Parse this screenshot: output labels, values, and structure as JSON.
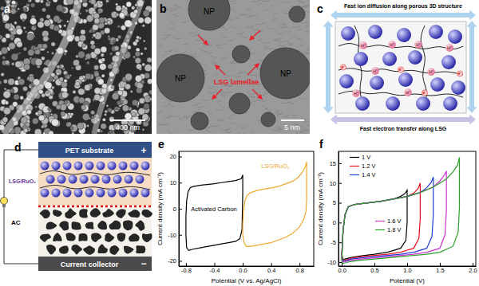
{
  "panels": {
    "a": {
      "label": "a",
      "scale_bar": "400 nm"
    },
    "b": {
      "label": "b",
      "particle_label": "NP",
      "annotation": "LSG lamellae",
      "scale_bar": "5 nm"
    },
    "c": {
      "label": "c",
      "top_text": "Fast ion diffusion along porous 3D structure",
      "bottom_text": "Fast electron transfer along LSG",
      "ion": "H⁺",
      "electron": "e⁻"
    },
    "d": {
      "label": "d",
      "substrate": "PET substrate",
      "positive": "+",
      "electrode_top": "LSG/RuO₂",
      "electrode_bottom": "AC",
      "collector": "Current collector",
      "negative": "−"
    }
  },
  "chart_data": [
    {
      "type": "line",
      "panel_label": "e",
      "xlabel": "Potential (V vs. Ag/AgCl)",
      "ylabel": "Current density (mA cm⁻²)",
      "xlim": [
        -0.9,
        1.0
      ],
      "ylim": [
        -22,
        22
      ],
      "xticks": [
        -0.8,
        -0.4,
        {
          "value": 0,
          "label": "0.0"
        },
        0.4,
        0.8
      ],
      "yticks": [
        -20,
        -10,
        0,
        10,
        20
      ],
      "series": [
        {
          "name": "Activated Carbon",
          "color": "#000000",
          "x": [
            -0.8,
            -0.79,
            -0.77,
            -0.74,
            -0.7,
            -0.6,
            -0.5,
            -0.4,
            -0.3,
            -0.2,
            -0.1,
            -0.02,
            0.0,
            0.0,
            -0.01,
            -0.04,
            -0.1,
            -0.2,
            -0.3,
            -0.4,
            -0.5,
            -0.6,
            -0.7,
            -0.76,
            -0.79,
            -0.8,
            -0.8
          ],
          "values": [
            -3,
            3,
            6.5,
            8,
            8.5,
            9,
            9.3,
            9.6,
            10,
            10.4,
            10.8,
            11.5,
            13,
            6,
            -8,
            -11.5,
            -12.5,
            -13,
            -13.5,
            -14,
            -14.5,
            -15,
            -15.5,
            -16,
            -15,
            -10,
            -3
          ]
        },
        {
          "name": "LSG/RuO₂",
          "color": "#f0a830",
          "x": [
            0,
            0.01,
            0.03,
            0.06,
            0.1,
            0.2,
            0.3,
            0.4,
            0.5,
            0.6,
            0.7,
            0.78,
            0.84,
            0.88,
            0.9,
            0.9,
            0.89,
            0.86,
            0.8,
            0.7,
            0.6,
            0.5,
            0.4,
            0.3,
            0.2,
            0.1,
            0.05,
            0.02,
            0,
            0
          ],
          "values": [
            -6,
            -1,
            3,
            5,
            6,
            7,
            7.5,
            8,
            8.5,
            9.5,
            10.5,
            12,
            14,
            16,
            18,
            4,
            -1,
            -4,
            -7,
            -9.5,
            -11,
            -12,
            -13,
            -13.5,
            -14,
            -14.5,
            -14.5,
            -13,
            -10,
            -6
          ]
        }
      ]
    },
    {
      "type": "line",
      "panel_label": "f",
      "xlabel": "Potential (V)",
      "ylabel": "Current density (mA cm⁻²)",
      "xlim": [
        -0.05,
        2.05
      ],
      "ylim": [
        -11,
        18
      ],
      "xticks": [
        {
          "value": 0,
          "label": "0.0"
        },
        0.5,
        {
          "value": 1,
          "label": "1.0"
        },
        1.5,
        {
          "value": 2,
          "label": "2.0"
        }
      ],
      "yticks": [
        -10,
        -5,
        0,
        5,
        10,
        15
      ],
      "series": [
        {
          "name": "1 V",
          "color": "#000000",
          "x": [
            0,
            0.02,
            0.05,
            0.1,
            0.2,
            0.4,
            0.6,
            0.8,
            0.9,
            0.97,
            1.0,
            1.0,
            0.98,
            0.9,
            0.7,
            0.5,
            0.3,
            0.15,
            0.05,
            0.02,
            0
          ],
          "values": [
            -8,
            -2,
            2,
            4,
            4.6,
            5,
            5.4,
            6,
            6.6,
            7.4,
            8.2,
            0,
            -4.5,
            -6.5,
            -7.5,
            -8,
            -8.4,
            -8.8,
            -9.2,
            -9.4,
            -8
          ]
        },
        {
          "name": "1.2 V",
          "color": "#e8141c",
          "x": [
            0,
            0.02,
            0.05,
            0.1,
            0.2,
            0.4,
            0.6,
            0.8,
            1.0,
            1.1,
            1.17,
            1.2,
            1.2,
            1.18,
            1.1,
            0.9,
            0.7,
            0.5,
            0.3,
            0.15,
            0.05,
            0.02,
            0
          ],
          "values": [
            -8.5,
            -2,
            2,
            4,
            4.6,
            5,
            5.4,
            6,
            6.6,
            7.4,
            8.7,
            10,
            1,
            -4,
            -6.5,
            -7.5,
            -8,
            -8.3,
            -8.6,
            -9,
            -9.5,
            -9.6,
            -8.5
          ]
        },
        {
          "name": "1.4 V",
          "color": "#1f3fd8",
          "x": [
            0,
            0.02,
            0.05,
            0.1,
            0.2,
            0.4,
            0.6,
            0.8,
            1.0,
            1.2,
            1.3,
            1.37,
            1.4,
            1.4,
            1.38,
            1.3,
            1.1,
            0.9,
            0.7,
            0.5,
            0.3,
            0.15,
            0.05,
            0.02,
            0
          ],
          "values": [
            -9,
            -2,
            2,
            4,
            4.6,
            5,
            5.4,
            6,
            6.6,
            7.6,
            8.8,
            10.2,
            11.5,
            2,
            -3.5,
            -6.5,
            -7.5,
            -8,
            -8.3,
            -8.6,
            -8.9,
            -9.2,
            -9.7,
            -9.8,
            -9
          ]
        },
        {
          "name": "1.6 V",
          "color": "#cc33cc",
          "x": [
            0,
            0.02,
            0.05,
            0.1,
            0.2,
            0.4,
            0.6,
            0.8,
            1.0,
            1.2,
            1.4,
            1.5,
            1.57,
            1.6,
            1.6,
            1.58,
            1.5,
            1.3,
            1.1,
            0.9,
            0.7,
            0.5,
            0.3,
            0.15,
            0.05,
            0.02,
            0
          ],
          "values": [
            -9.5,
            -2,
            2,
            4,
            4.6,
            5,
            5.4,
            6,
            6.6,
            7.6,
            9,
            10.5,
            12,
            13,
            3,
            -3,
            -6.5,
            -7.5,
            -8,
            -8.3,
            -8.6,
            -8.9,
            -9.2,
            -9.5,
            -9.9,
            -10,
            -9.5
          ]
        },
        {
          "name": "1.8 V",
          "color": "#2ca02c",
          "x": [
            0,
            0.02,
            0.05,
            0.1,
            0.2,
            0.4,
            0.6,
            0.8,
            1.0,
            1.2,
            1.4,
            1.6,
            1.7,
            1.77,
            1.8,
            1.8,
            1.78,
            1.7,
            1.5,
            1.3,
            1.1,
            0.9,
            0.7,
            0.5,
            0.3,
            0.15,
            0.05,
            0.02,
            0
          ],
          "values": [
            -10,
            -2,
            2,
            4,
            4.6,
            5,
            5.4,
            6,
            6.6,
            7.6,
            9,
            11,
            12.8,
            14.5,
            16.5,
            4,
            -2.5,
            -6,
            -7.5,
            -8,
            -8.3,
            -8.6,
            -8.9,
            -9.2,
            -9.5,
            -9.8,
            -10.2,
            -10.3,
            -10
          ]
        }
      ]
    }
  ]
}
